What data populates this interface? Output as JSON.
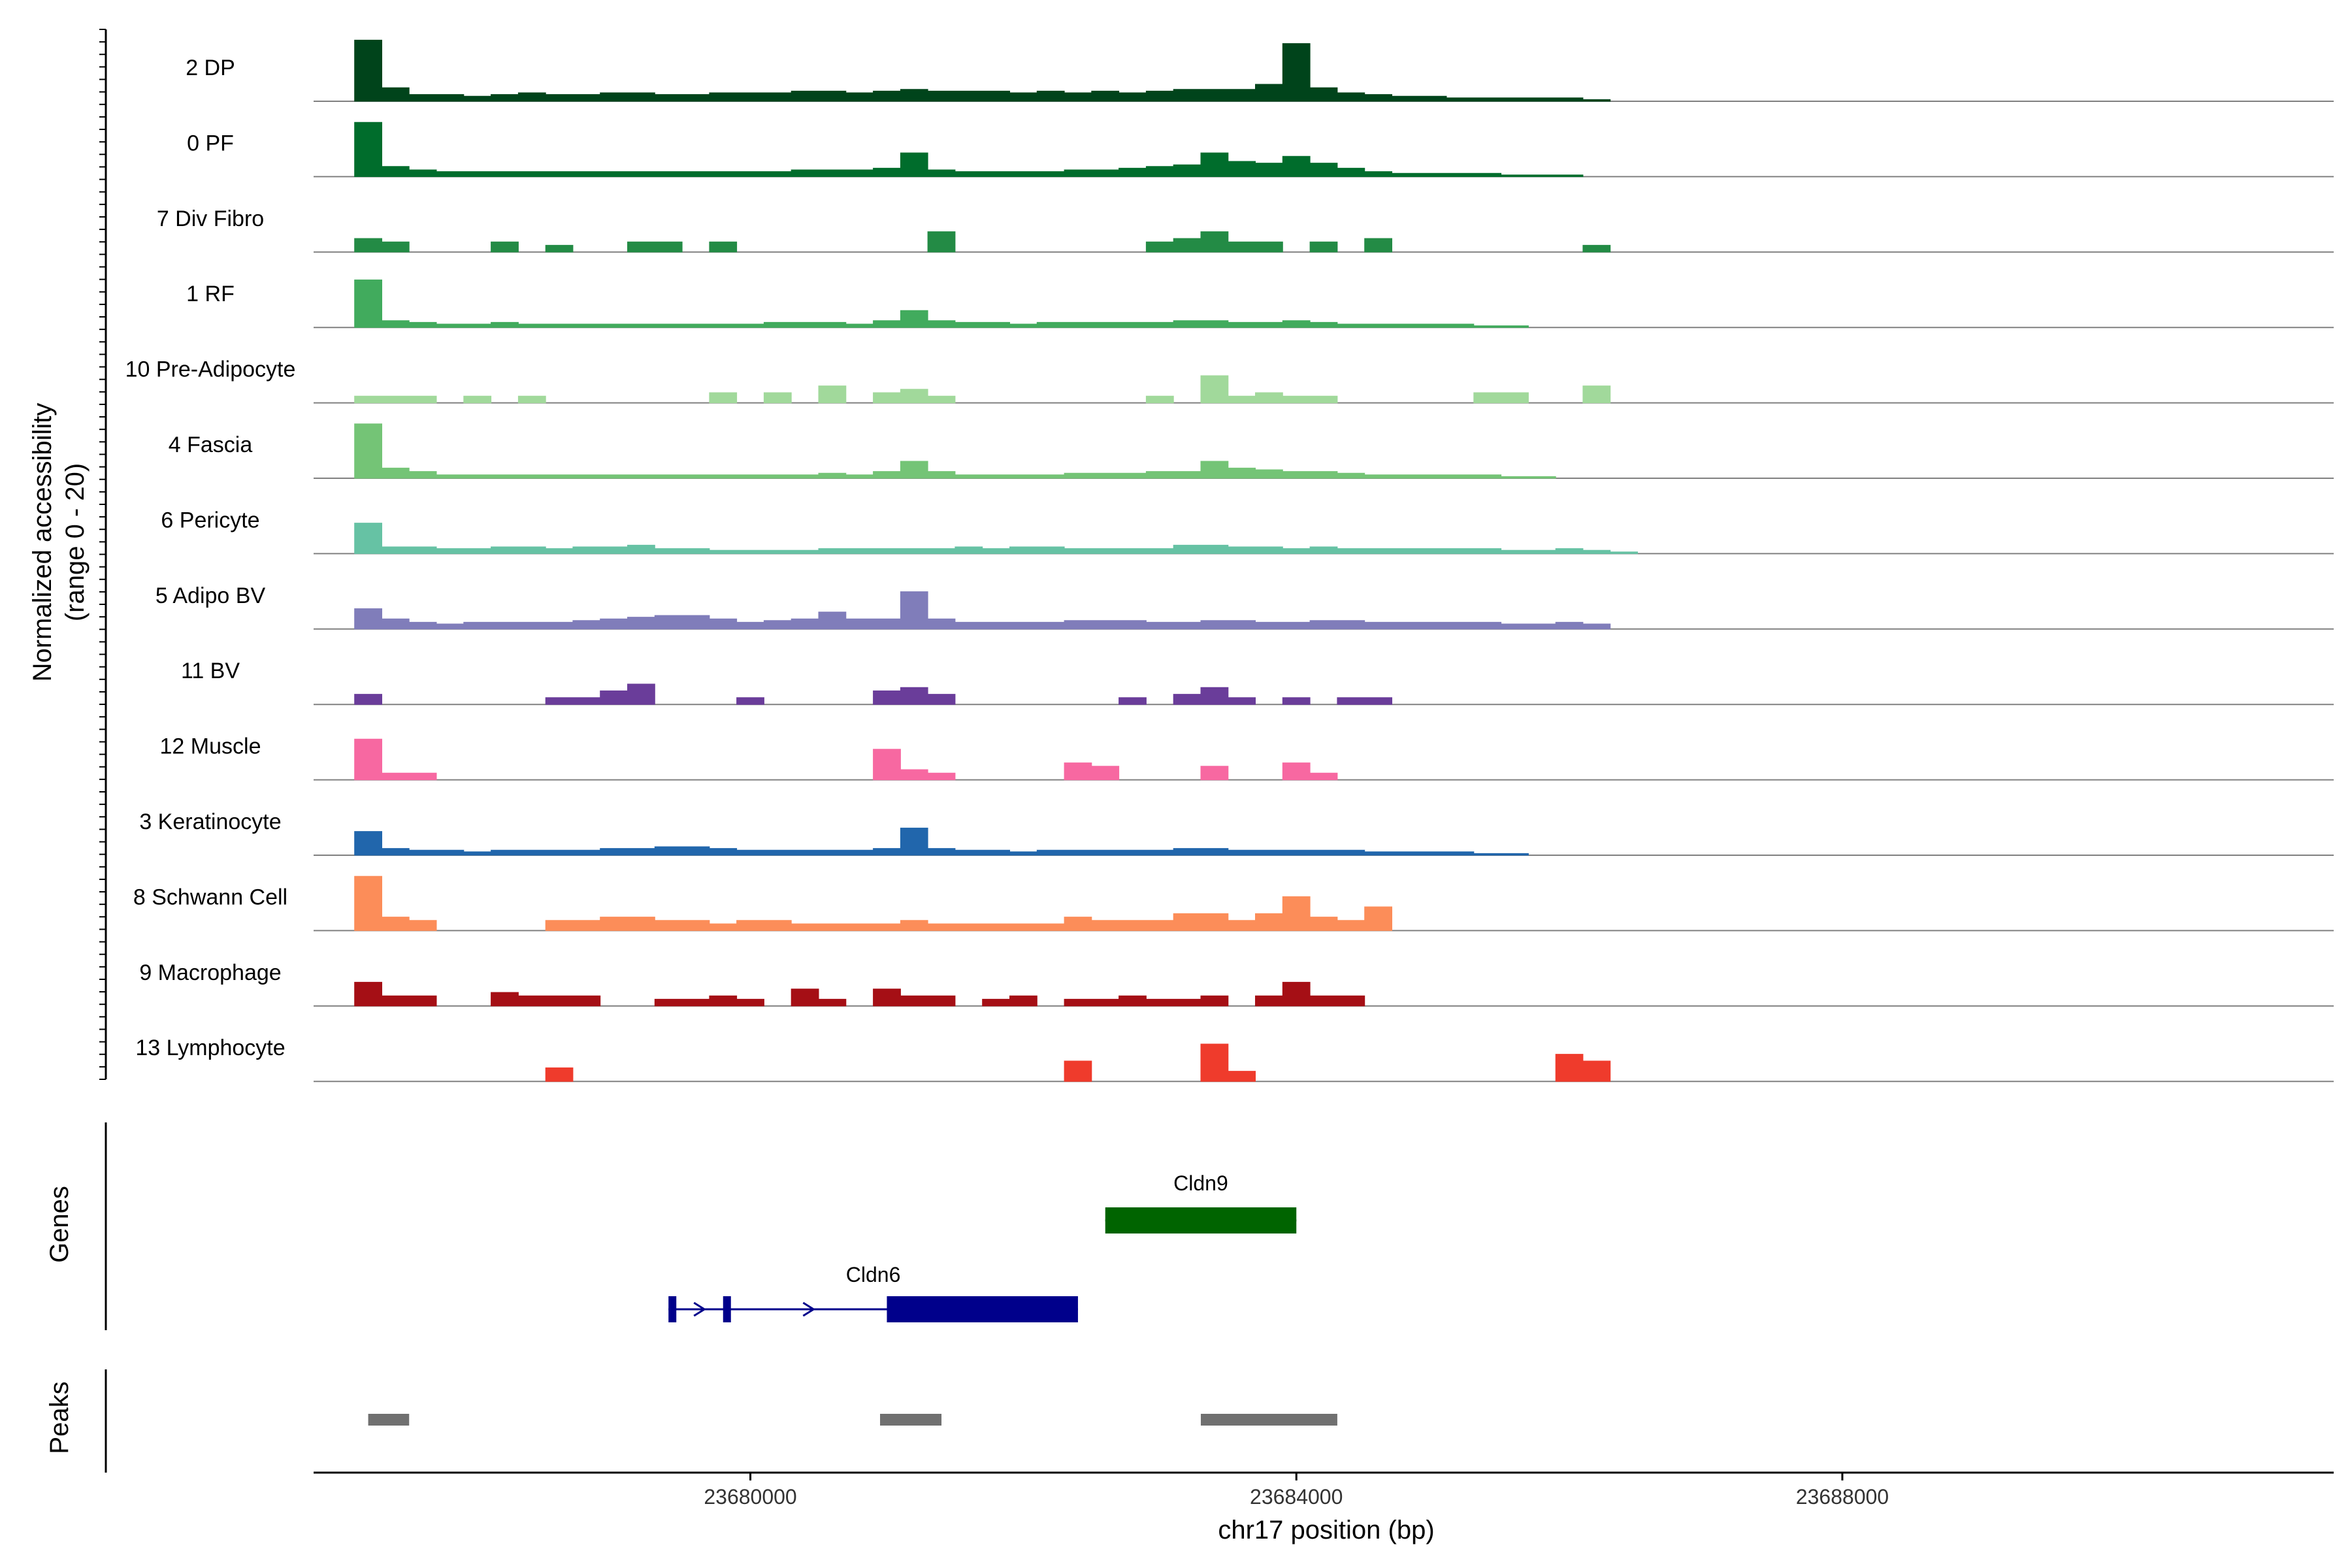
{
  "chart_data": {
    "type": "area",
    "xlabel": "chr17 position (bp)",
    "ylabel": "Normalized accessibility",
    "ylabel_sub": "(range 0 - 20)",
    "xlim": [
      23676800,
      23691600
    ],
    "ylim": [
      0,
      20
    ],
    "x_ticks": [
      23680000,
      23684000,
      23688000
    ],
    "x_tick_labels": [
      "23680000",
      "23684000",
      "23688000"
    ],
    "x": [
      23677200,
      23677400,
      23677600,
      23677800,
      23678000,
      23678200,
      23678400,
      23678600,
      23678800,
      23679000,
      23679200,
      23679400,
      23679600,
      23679800,
      23680000,
      23680200,
      23680400,
      23680600,
      23680800,
      23681000,
      23681200,
      23681400,
      23681600,
      23681800,
      23682000,
      23682200,
      23682400,
      23682600,
      23682800,
      23683000,
      23683200,
      23683400,
      23683600,
      23683800,
      23684000,
      23684200,
      23684400,
      23684600,
      23684800,
      23685000,
      23685200,
      23685400,
      23685600,
      23685800,
      23686000,
      23686200,
      23686400
    ],
    "series": [
      {
        "name": "2 DP",
        "color": "#00441b",
        "values": [
          18,
          4,
          2,
          2,
          1.5,
          2,
          2.5,
          2,
          2,
          2.5,
          2.5,
          2,
          2,
          2.5,
          2.5,
          2.5,
          3,
          3,
          2.5,
          3,
          3.5,
          3,
          3,
          3,
          2.5,
          3,
          2.5,
          3,
          2.5,
          3,
          3.5,
          3.5,
          3.5,
          5,
          17,
          4,
          2.5,
          2,
          1.5,
          1.5,
          1,
          1,
          1,
          1,
          1,
          0.5,
          0
        ]
      },
      {
        "name": "0 PF",
        "color": "#006d2c",
        "values": [
          16,
          3,
          2,
          1.5,
          1.5,
          1.5,
          1.5,
          1.5,
          1.5,
          1.5,
          1.5,
          1.5,
          1.5,
          1.5,
          1.5,
          1.5,
          2,
          2,
          2,
          2.5,
          7,
          2,
          1.5,
          1.5,
          1.5,
          1.5,
          2,
          2,
          2.5,
          3,
          3.5,
          7,
          4.5,
          4,
          6,
          4,
          2.5,
          1.5,
          1,
          1,
          1,
          1,
          0.5,
          0.5,
          0.5,
          0,
          0
        ]
      },
      {
        "name": "7 Div Fibro",
        "color": "#238b45",
        "values": [
          4,
          3,
          0,
          0,
          0,
          3,
          0,
          2,
          0,
          0,
          3,
          3,
          0,
          3,
          0,
          0,
          0,
          0,
          0,
          0,
          0,
          6,
          0,
          0,
          0,
          0,
          0,
          0,
          0,
          3,
          4,
          6,
          3,
          3,
          0,
          3,
          0,
          4,
          0,
          0,
          0,
          0,
          0,
          0,
          0,
          2,
          0
        ]
      },
      {
        "name": "1 RF",
        "color": "#41ab5d",
        "values": [
          14,
          2,
          1.5,
          1,
          1,
          1.5,
          1,
          1,
          1,
          1,
          1,
          1,
          1,
          1,
          1,
          1.5,
          1.5,
          1.5,
          1,
          2,
          5,
          2,
          1.5,
          1.5,
          1,
          1.5,
          1.5,
          1.5,
          1.5,
          1.5,
          2,
          2,
          1.5,
          1.5,
          2,
          1.5,
          1,
          1,
          1,
          1,
          1,
          0.5,
          0.5,
          0,
          0,
          0,
          0
        ]
      },
      {
        "name": "10 Pre-Adipocyte",
        "color": "#a1d99b",
        "values": [
          2,
          2,
          2,
          0,
          2,
          0,
          2,
          0,
          0,
          0,
          0,
          0,
          0,
          3,
          0,
          3,
          0,
          5,
          0,
          3,
          4,
          2,
          0,
          0,
          0,
          0,
          0,
          0,
          0,
          2,
          0,
          8,
          2,
          3,
          2,
          2,
          0,
          0,
          0,
          0,
          0,
          3,
          3,
          0,
          0,
          5,
          0
        ]
      },
      {
        "name": "4 Fascia",
        "color": "#74c476",
        "values": [
          16,
          3,
          2,
          1,
          1,
          1,
          1,
          1,
          1,
          1,
          1,
          1,
          1,
          1,
          1,
          1,
          1,
          1.5,
          1,
          2,
          5,
          2,
          1,
          1,
          1,
          1,
          1.5,
          1.5,
          1.5,
          2,
          2,
          5,
          3,
          2.5,
          2,
          2,
          1.5,
          1,
          1,
          1,
          1,
          1,
          0.5,
          0.5,
          0,
          0,
          0
        ]
      },
      {
        "name": "6 Pericyte",
        "color": "#66c2a4",
        "values": [
          9,
          2,
          2,
          1.5,
          1.5,
          2,
          2,
          1.5,
          2,
          2,
          2.5,
          1.5,
          1.5,
          1,
          1,
          1,
          1,
          1.5,
          1.5,
          1.5,
          1.5,
          1.5,
          2,
          1.5,
          2,
          2,
          1.5,
          1.5,
          1.5,
          1.5,
          2.5,
          2.5,
          2,
          2,
          1.5,
          2,
          1.5,
          1.5,
          1.5,
          1.5,
          1.5,
          1.5,
          1,
          1,
          1.5,
          1,
          0.5
        ]
      },
      {
        "name": "5 Adipo BV",
        "color": "#807dba",
        "values": [
          6,
          3,
          2,
          1.5,
          2,
          2,
          2,
          2,
          2.5,
          3,
          3.5,
          4,
          4,
          3,
          2,
          2.5,
          3,
          5,
          3,
          3,
          11,
          3,
          2,
          2,
          2,
          2,
          2.5,
          2.5,
          2.5,
          2,
          2,
          2.5,
          2.5,
          2,
          2,
          2.5,
          2.5,
          2,
          2,
          2,
          2,
          2,
          1.5,
          1.5,
          2,
          1.5,
          0
        ]
      },
      {
        "name": "11 BV",
        "color": "#6a3d9a",
        "values": [
          3,
          0,
          0,
          0,
          0,
          0,
          0,
          2,
          2,
          4,
          6,
          0,
          0,
          0,
          2,
          0,
          0,
          0,
          0,
          4,
          5,
          3,
          0,
          0,
          0,
          0,
          0,
          0,
          2,
          0,
          3,
          5,
          2,
          0,
          2,
          0,
          2,
          2,
          0,
          0,
          0,
          0,
          0,
          0,
          0,
          0,
          0
        ]
      },
      {
        "name": "12 Muscle",
        "color": "#f768a1",
        "values": [
          12,
          2,
          2,
          0,
          0,
          0,
          0,
          0,
          0,
          0,
          0,
          0,
          0,
          0,
          0,
          0,
          0,
          0,
          0,
          9,
          3,
          2,
          0,
          0,
          0,
          0,
          5,
          4,
          0,
          0,
          0,
          4,
          0,
          0,
          5,
          2,
          0,
          0,
          0,
          0,
          0,
          0,
          0,
          0,
          0,
          0,
          0
        ]
      },
      {
        "name": "3 Keratinocyte",
        "color": "#2166ac",
        "values": [
          7,
          2,
          1.5,
          1.5,
          1,
          1.5,
          1.5,
          1.5,
          1.5,
          2,
          2,
          2.5,
          2.5,
          2,
          1.5,
          1.5,
          1.5,
          1.5,
          1.5,
          2,
          8,
          2,
          1.5,
          1.5,
          1,
          1.5,
          1.5,
          1.5,
          1.5,
          1.5,
          2,
          2,
          1.5,
          1.5,
          1.5,
          1.5,
          1.5,
          1,
          1,
          1,
          1,
          0.5,
          0.5,
          0,
          0,
          0,
          0
        ]
      },
      {
        "name": "8 Schwann Cell",
        "color": "#fc8d59",
        "values": [
          16,
          4,
          3,
          0,
          0,
          0,
          0,
          3,
          3,
          4,
          4,
          3,
          3,
          2,
          3,
          3,
          2,
          2,
          2,
          2,
          3,
          2,
          2,
          2,
          2,
          2,
          4,
          3,
          3,
          3,
          5,
          5,
          3,
          5,
          10,
          4,
          3,
          7,
          0,
          0,
          0,
          0,
          0,
          0,
          0,
          0,
          0
        ]
      },
      {
        "name": "9 Macrophage",
        "color": "#a50f15",
        "values": [
          7,
          3,
          3,
          0,
          0,
          4,
          3,
          3,
          3,
          0,
          0,
          2,
          2,
          3,
          2,
          0,
          5,
          2,
          0,
          5,
          3,
          3,
          0,
          2,
          3,
          0,
          2,
          2,
          3,
          2,
          2,
          3,
          0,
          3,
          7,
          3,
          3,
          0,
          0,
          0,
          0,
          0,
          0,
          0,
          0,
          0,
          0
        ]
      },
      {
        "name": "13 Lymphocyte",
        "color": "#ef3b2c",
        "values": [
          0,
          0,
          0,
          0,
          0,
          0,
          0,
          4,
          0,
          0,
          0,
          0,
          0,
          0,
          0,
          0,
          0,
          0,
          0,
          0,
          0,
          0,
          0,
          0,
          0,
          0,
          6,
          0,
          0,
          0,
          0,
          11,
          3,
          0,
          0,
          0,
          0,
          0,
          0,
          0,
          0,
          0,
          0,
          0,
          8,
          6,
          0
        ]
      }
    ],
    "genes": {
      "title": "Genes",
      "items": [
        {
          "name": "Cldn9",
          "start": 23682600,
          "end": 23684000,
          "color": "#006400",
          "strand": "+",
          "exons": [
            [
              23682600,
              23684000
            ]
          ]
        },
        {
          "name": "Cldn6",
          "start": 23679400,
          "end": 23682400,
          "color": "#00008b",
          "strand": "+",
          "exons": [
            [
              23679400,
              23679450
            ],
            [
              23679800,
              23679850
            ],
            [
              23681000,
              23682400
            ]
          ]
        }
      ]
    },
    "peaks": {
      "title": "Peaks",
      "color": "#707070",
      "items": [
        [
          23677200,
          23677500
        ],
        [
          23680950,
          23681400
        ],
        [
          23683300,
          23684300
        ]
      ]
    }
  }
}
